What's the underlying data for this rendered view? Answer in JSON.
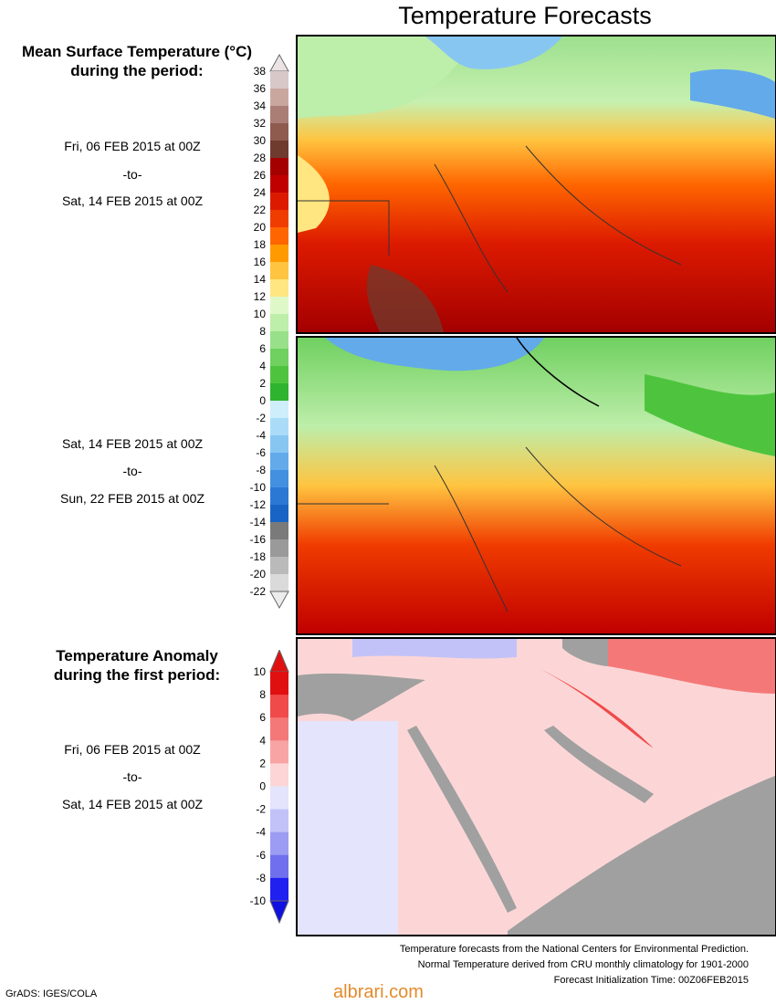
{
  "header": {
    "title": "Temperature Forecasts"
  },
  "mean_section": {
    "title_line1": "Mean Surface Temperature (°C)",
    "title_line2": "during the period:",
    "period1": {
      "start": "Fri, 06 FEB 2015 at 00Z",
      "to": "-to-",
      "end": "Sat, 14 FEB 2015 at 00Z"
    },
    "period2": {
      "start": "Sat, 14 FEB 2015 at 00Z",
      "to": "-to-",
      "end": "Sun, 22 FEB 2015 at 00Z"
    }
  },
  "anomaly_section": {
    "title_line1": "Temperature Anomaly",
    "title_line2": "during the first period:",
    "period": {
      "start": "Fri, 06 FEB 2015 at 00Z",
      "to": "-to-",
      "end": "Sat, 14 FEB 2015 at 00Z"
    }
  },
  "footer": {
    "line1": "Temperature forecasts from the National Centers for Environmental Prediction.",
    "line2": "Normal Temperature derived from CRU monthly climatology for 1901-2000",
    "line3": "Forecast Initialization Time: 00Z06FEB2015",
    "credit": "GrADS: IGES/COLA",
    "brand": "albrari.com"
  },
  "chart_data": [
    {
      "type": "heatmap",
      "name": "mean_temperature_colorbar",
      "unit": "°C",
      "ticks": [
        38,
        36,
        34,
        32,
        30,
        28,
        26,
        24,
        22,
        20,
        18,
        16,
        14,
        12,
        10,
        8,
        6,
        4,
        2,
        0,
        -2,
        -4,
        -6,
        -8,
        -10,
        -12,
        -14,
        -16,
        -18,
        -20,
        -22
      ],
      "colors": [
        "#d8c8c8",
        "#c9a79f",
        "#aa7e74",
        "#8f5b4f",
        "#6e3b2e",
        "#a40000",
        "#c00000",
        "#dc1a00",
        "#f03c00",
        "#ff6600",
        "#ff9a00",
        "#ffc440",
        "#ffe680",
        "#dff8c8",
        "#bdeeaa",
        "#98e08a",
        "#70d060",
        "#4ec43e",
        "#2eb42e",
        "#cdeefa",
        "#aadcf8",
        "#88c6f2",
        "#62aaea",
        "#4490e0",
        "#2a78d4",
        "#1864c4",
        "#7a7a7a",
        "#9a9a9a",
        "#bababa",
        "#dadada"
      ]
    },
    {
      "type": "heatmap",
      "name": "temperature_anomaly_colorbar",
      "unit": "°C",
      "ticks": [
        10,
        8,
        6,
        4,
        2,
        0,
        -2,
        -4,
        -6,
        -8,
        -10
      ],
      "colors": [
        "#e01010",
        "#f04a4a",
        "#f57878",
        "#f8a4a4",
        "#fcd6d6",
        "#e4e4fc",
        "#c2c2f8",
        "#9c9cf2",
        "#7070ee",
        "#2020f0"
      ]
    }
  ],
  "maps": {
    "panel1": {
      "label": "map-period-1"
    },
    "panel2": {
      "label": "map-period-2"
    },
    "panel3": {
      "label": "anomaly-map"
    },
    "land_gray": "#a0a0a0",
    "border_color": "#333333"
  }
}
